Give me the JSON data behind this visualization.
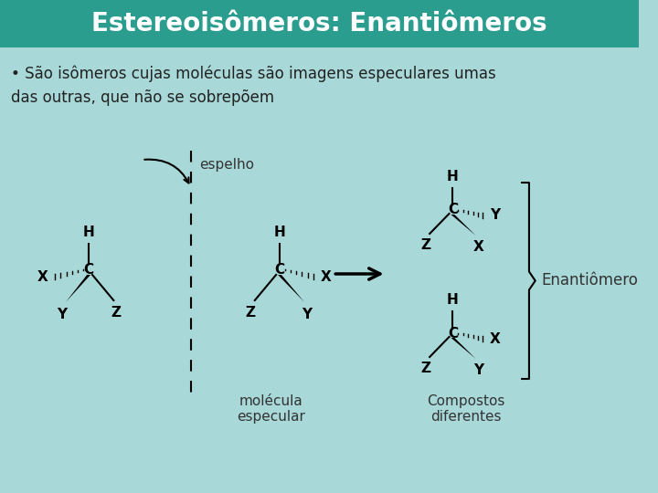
{
  "title": "Estereoisômeros: Enantiômeros",
  "title_bg": "#2a9d8f",
  "title_color": "#ffffff",
  "bg_color": "#a8d8d8",
  "bullet_text": "• São isômeros cujas moléculas são imagens especulares umas\ndas outras, que não se sobrepõem",
  "label_espelho": "espelho",
  "label_molecula": "molécula\nespecular",
  "label_compostos": "Compostos\ndiferentes",
  "label_enantio": "Enantiômero"
}
